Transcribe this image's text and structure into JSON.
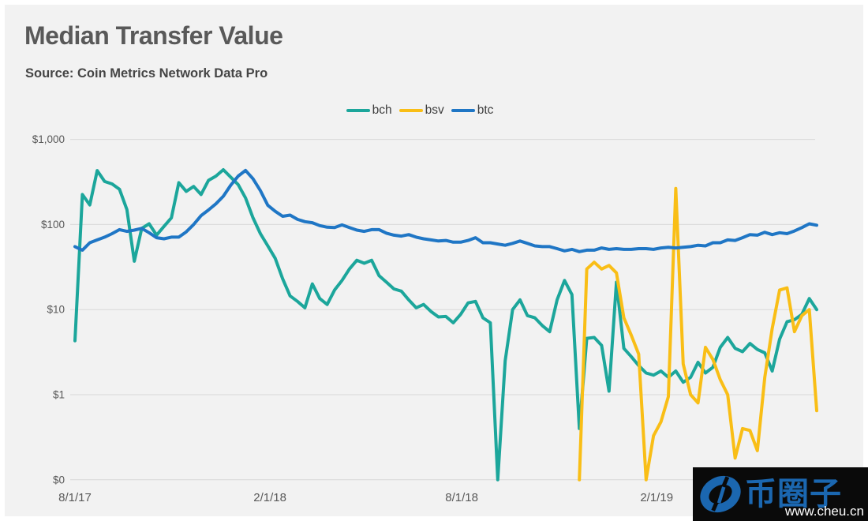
{
  "page": {
    "canvas_bg": "#f2f2f2",
    "frame_color": "#ffffff",
    "gridline_color": "#d8d8d8",
    "axis_label_color": "#595959"
  },
  "header": {
    "title": "Median Transfer Value",
    "source": "Source: Coin Metrics Network Data Pro"
  },
  "legend": {
    "items": [
      {
        "label": "bch",
        "color": "#1CA69B"
      },
      {
        "label": "bsv",
        "color": "#F9BE16"
      },
      {
        "label": "btc",
        "color": "#1F76C5"
      }
    ]
  },
  "watermark": {
    "cn_text": "币圈子",
    "url": "www.cheu.cn",
    "bg_color": "#0a0a0a",
    "brand_color": "#1B67B0",
    "url_color": "#ffffff"
  },
  "chart_data": {
    "type": "line",
    "title": "Median Transfer Value",
    "y_scale": "log",
    "grid": true,
    "legend_position": "top",
    "x_start_date": "2017-08-01",
    "x_interval_days": 7,
    "x_total_days": 700,
    "x_ticks": [
      {
        "label": "8/1/17",
        "day": 0
      },
      {
        "label": "2/1/18",
        "day": 184
      },
      {
        "label": "8/1/18",
        "day": 365
      },
      {
        "label": "2/1/19",
        "day": 549
      }
    ],
    "y_ticks": [
      {
        "label": "$1,000",
        "value": 1000
      },
      {
        "label": "$100",
        "value": 100
      },
      {
        "label": "$10",
        "value": 10
      },
      {
        "label": "$1",
        "value": 1
      },
      {
        "label": "$0",
        "value": 0
      }
    ],
    "series": [
      {
        "name": "bch",
        "color": "#1CA69B",
        "values": [
          4.3,
          225,
          170,
          430,
          320,
          300,
          260,
          150,
          37,
          90,
          102,
          75,
          95,
          120,
          310,
          245,
          280,
          225,
          330,
          370,
          440,
          360,
          295,
          205,
          120,
          78,
          56,
          40,
          23,
          14.5,
          12.5,
          10.5,
          20,
          13.5,
          11.5,
          17,
          22,
          30,
          38,
          35,
          38,
          25,
          21,
          17.5,
          16.5,
          13,
          10.5,
          11.5,
          9.5,
          8.2,
          8.3,
          7,
          8.8,
          12,
          12.5,
          8,
          7,
          0,
          2.5,
          10,
          13,
          8.5,
          8,
          6.5,
          5.5,
          13,
          22,
          15,
          0.4,
          4.6,
          4.7,
          3.8,
          1.1,
          21,
          3.5,
          2.8,
          2.2,
          1.8,
          1.7,
          1.9,
          1.6,
          1.9,
          1.4,
          1.6,
          2.4,
          1.8,
          2.1,
          3.6,
          4.7,
          3.5,
          3.2,
          4.0,
          3.4,
          3.1,
          1.9,
          4.5,
          7.2,
          7.6,
          8.8,
          13.5,
          10
        ]
      },
      {
        "name": "bsv",
        "color": "#F9BE16",
        "values": [
          null,
          null,
          null,
          null,
          null,
          null,
          null,
          null,
          null,
          null,
          null,
          null,
          null,
          null,
          null,
          null,
          null,
          null,
          null,
          null,
          null,
          null,
          null,
          null,
          null,
          null,
          null,
          null,
          null,
          null,
          null,
          null,
          null,
          null,
          null,
          null,
          null,
          null,
          null,
          null,
          null,
          null,
          null,
          null,
          null,
          null,
          null,
          null,
          null,
          null,
          null,
          null,
          null,
          null,
          null,
          null,
          null,
          null,
          null,
          null,
          null,
          null,
          null,
          null,
          null,
          null,
          null,
          null,
          0,
          30,
          36,
          30,
          33,
          27,
          8,
          5,
          3,
          0,
          0.33,
          0.48,
          0.95,
          265,
          2.3,
          1.0,
          0.8,
          3.6,
          2.6,
          1.5,
          1.0,
          0.18,
          0.4,
          0.38,
          0.22,
          1.6,
          6,
          17,
          18,
          5.5,
          8.5,
          10,
          0.65
        ]
      },
      {
        "name": "btc",
        "color": "#1F76C5",
        "values": [
          55,
          50,
          61,
          66,
          71,
          78,
          87,
          83,
          86,
          90,
          80,
          70,
          68,
          71,
          71,
          82,
          100,
          127,
          148,
          175,
          215,
          290,
          370,
          432,
          345,
          250,
          168,
          143,
          125,
          129,
          115,
          108,
          105,
          97,
          93,
          92,
          99,
          92,
          86,
          83,
          87,
          87,
          79,
          75,
          73,
          76,
          71,
          68,
          66,
          64,
          65,
          62,
          62,
          65,
          70,
          61,
          61,
          59,
          57,
          60,
          64,
          60,
          56,
          55,
          55,
          52,
          49,
          51,
          48,
          50,
          50,
          53,
          51,
          52,
          51,
          51,
          52,
          52,
          51,
          53,
          54,
          53,
          54,
          55,
          57,
          56,
          61,
          61,
          66,
          65,
          70,
          76,
          75,
          81,
          76,
          80,
          78,
          84,
          92,
          102,
          98
        ]
      }
    ]
  }
}
